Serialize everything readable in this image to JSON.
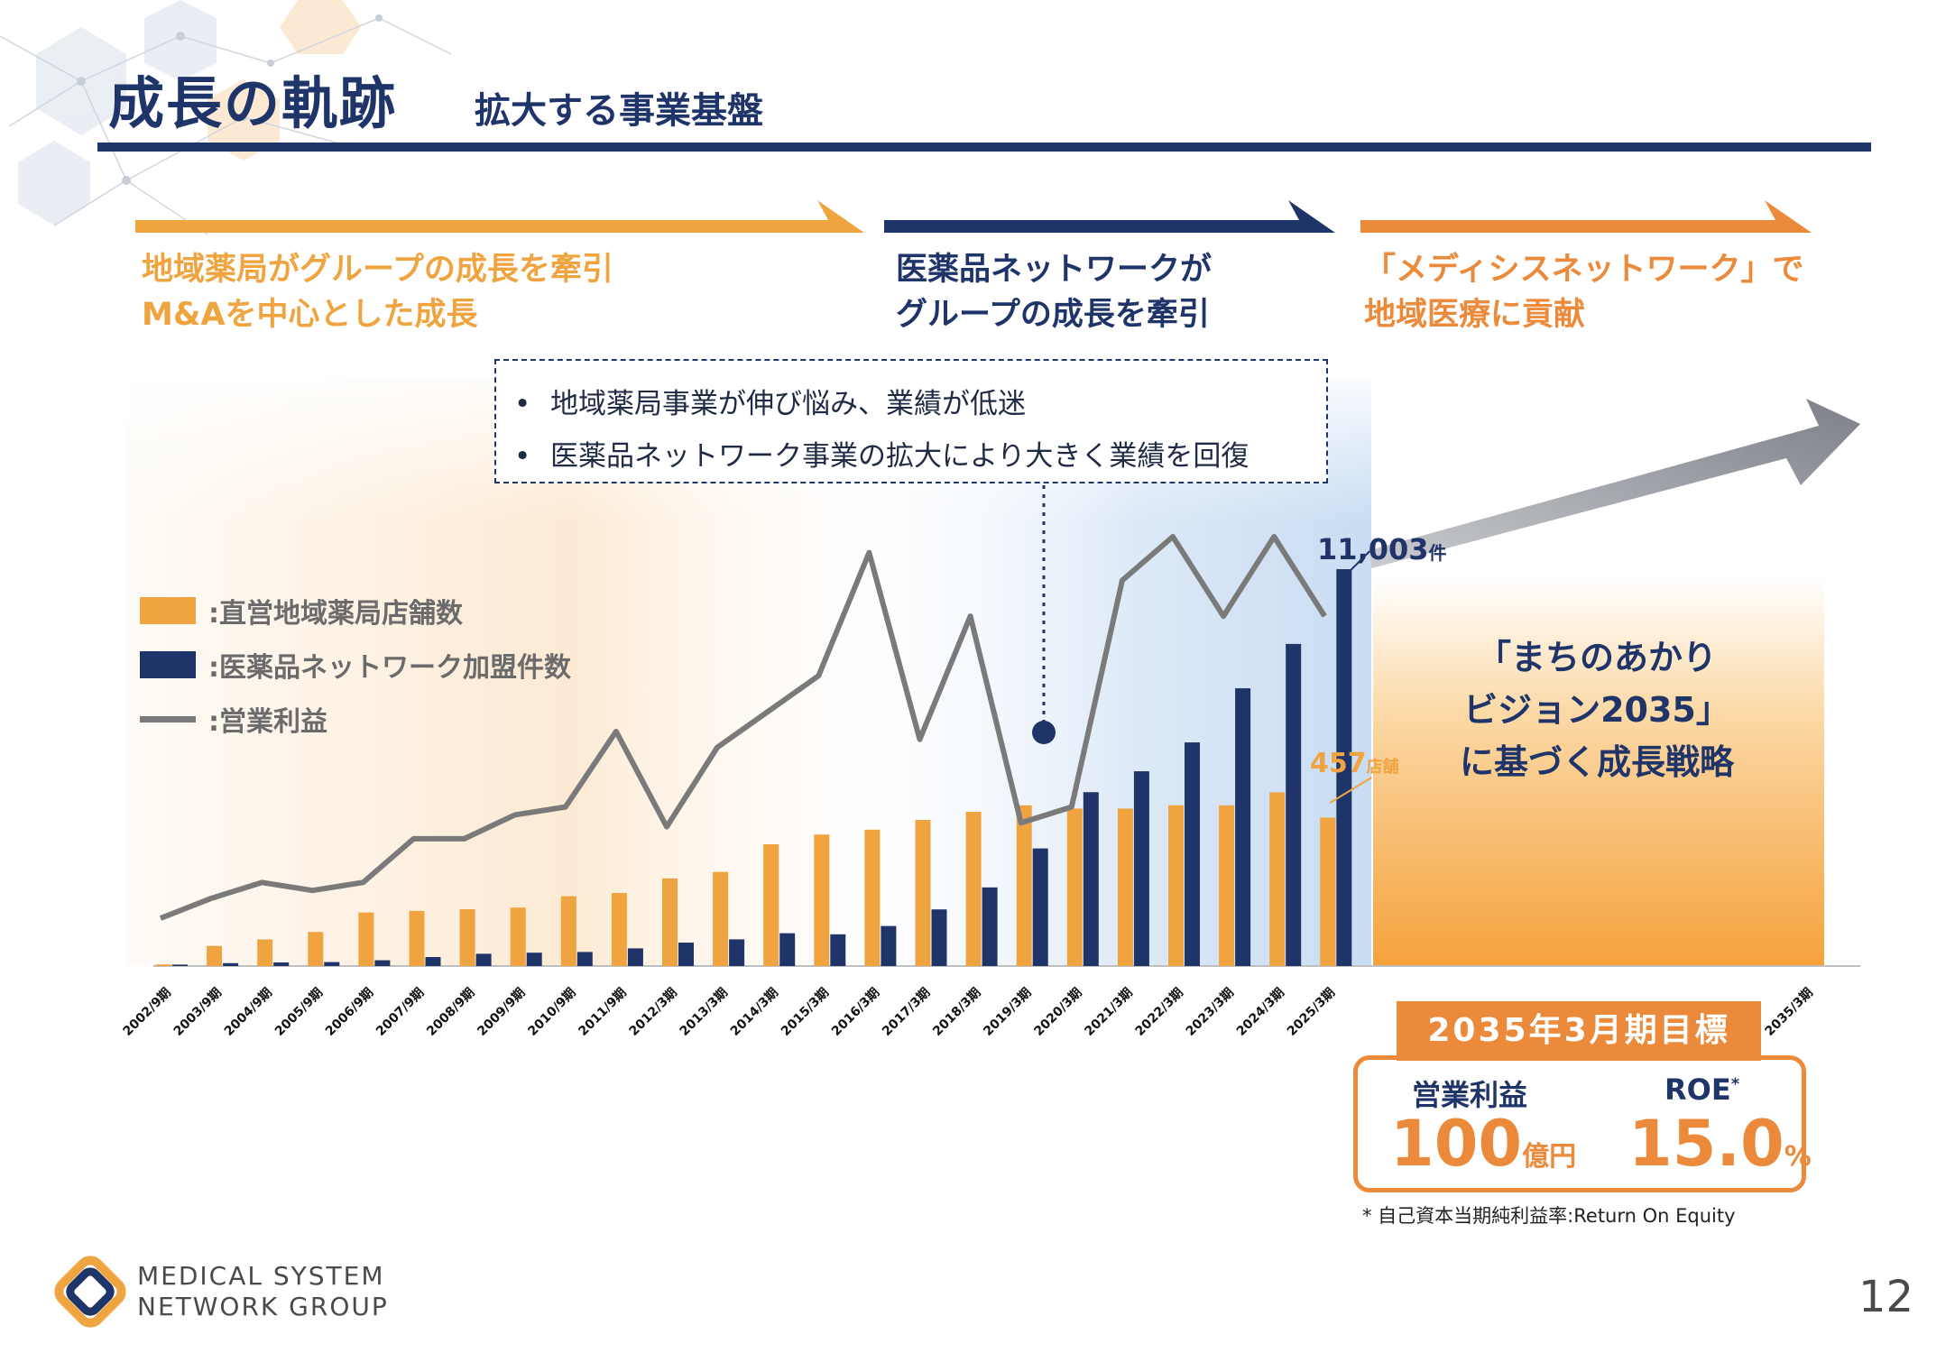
{
  "header": {
    "title": "成長の軌跡",
    "subtitle": "拡大する事業基盤"
  },
  "phases": [
    {
      "line1": "地域薬局がグループの成長を牽引",
      "line2": "M&Aを中心とした成長",
      "color": "#f0a440"
    },
    {
      "line1": "医薬品ネットワークが",
      "line2": "グループの成長を牽引",
      "color": "#1f3468"
    },
    {
      "line1": "「メディシスネットワーク」で",
      "line2": "地域医療に貢献",
      "color": "#ec8a3b"
    }
  ],
  "callout": {
    "line1": "地域薬局事業が伸び悩み、業績が低迷",
    "line2": "医薬品ネットワーク事業の拡大により大きく業績を回復"
  },
  "legend": {
    "stores": ":直営地域薬局店舗数",
    "network": ":医薬品ネットワーク加盟件数",
    "profit": ":営業利益"
  },
  "annotations": {
    "network_value": "11,003",
    "network_unit": "件",
    "stores_value": "457",
    "stores_unit": "店舗"
  },
  "vision": {
    "line1": "「まちのあかり",
    "line2": "ビジョン2035」",
    "line3": "に基づく成長戦略"
  },
  "target": {
    "header": "2035年3月期目標",
    "kpi1_label": "営業利益",
    "kpi1_value": "100",
    "kpi1_unit": "億円",
    "kpi2_label": "ROE",
    "kpi2_mark": "*",
    "kpi2_value": "15.0",
    "kpi2_unit": "%"
  },
  "footnote": "* 自己資本当期純利益率:Return On Equity",
  "logo": {
    "line1": "MEDICAL SYSTEM",
    "line2": "NETWORK GROUP"
  },
  "page_number": "12",
  "colors": {
    "navy": "#1f3468",
    "orange": "#f0a440",
    "deep_orange": "#ec8a3b",
    "gray": "#7a7a7a"
  },
  "chart_data": {
    "type": "bar",
    "categories": [
      "2002/9期",
      "2003/9期",
      "2004/9期",
      "2005/9期",
      "2006/9期",
      "2007/9期",
      "2008/9期",
      "2009/9期",
      "2010/9期",
      "2011/9期",
      "2012/3期",
      "2013/3期",
      "2014/3期",
      "2015/3期",
      "2016/3期",
      "2017/3期",
      "2018/3期",
      "2019/3期",
      "2020/3期",
      "2021/3期",
      "2022/3期",
      "2023/3期",
      "2024/3期",
      "2025/3期"
    ],
    "future_category": "2035/3期",
    "series": [
      {
        "name": "直営地域薬局店舗数",
        "type": "bar",
        "color": "#f0a440",
        "values": [
          5,
          62,
          82,
          105,
          165,
          170,
          175,
          180,
          215,
          225,
          270,
          290,
          375,
          405,
          420,
          450,
          475,
          495,
          485,
          485,
          495,
          495,
          535,
          457
        ]
      },
      {
        "name": "医薬品ネットワーク加盟件数",
        "type": "bar",
        "color": "#1f3468",
        "values": [
          40,
          80,
          100,
          110,
          160,
          250,
          340,
          370,
          390,
          490,
          650,
          740,
          910,
          880,
          1110,
          1570,
          2180,
          3260,
          4820,
          5400,
          6200,
          7700,
          8930,
          11003
        ]
      },
      {
        "name": "営業利益",
        "type": "line",
        "color": "#7a7a7a",
        "values": [
          1.0,
          1.5,
          1.9,
          1.7,
          1.9,
          3.0,
          3.0,
          3.6,
          3.8,
          5.7,
          3.3,
          5.3,
          6.2,
          7.1,
          10.2,
          5.5,
          8.6,
          3.4,
          3.8,
          9.5,
          10.6,
          8.6,
          10.6,
          8.6
        ]
      }
    ],
    "highlight_index": 17
  }
}
